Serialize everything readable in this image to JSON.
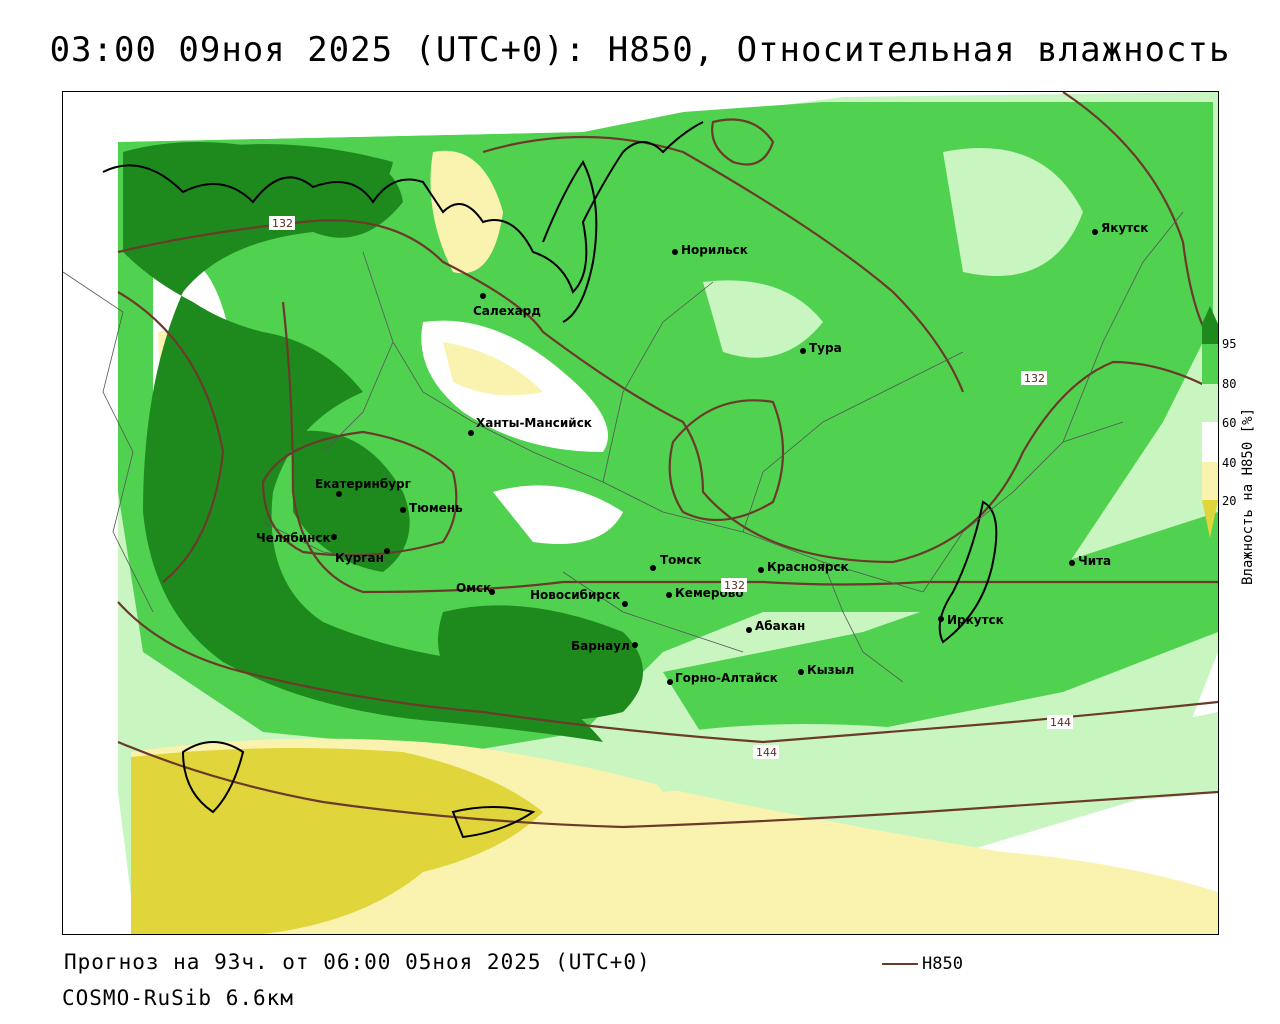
{
  "title": "03:00 09ноя 2025 (UTC+0): H850, Относительная влажность",
  "colorbar": {
    "label": "Влажность на H850 [%]",
    "ticks": [
      "95",
      "80",
      "60",
      "40",
      "20"
    ],
    "colors": [
      "#1e8a1e",
      "#50d250",
      "#c9f5c0",
      "#ffffff",
      "#faf3b0",
      "#e0d53a"
    ]
  },
  "cities": [
    {
      "name": "Якутск"
    },
    {
      "name": "Норильск"
    },
    {
      "name": "Салехард"
    },
    {
      "name": "Тура"
    },
    {
      "name": "Ханты-Мансийск"
    },
    {
      "name": "Екатеринбург"
    },
    {
      "name": "Тюмень"
    },
    {
      "name": "Челябинск"
    },
    {
      "name": "Курган"
    },
    {
      "name": "Омск"
    },
    {
      "name": "Новосибирск"
    },
    {
      "name": "Томск"
    },
    {
      "name": "Кемерово"
    },
    {
      "name": "Красноярск"
    },
    {
      "name": "Барнаул"
    },
    {
      "name": "Абакан"
    },
    {
      "name": "Горно-Алтайск"
    },
    {
      "name": "Кызыл"
    },
    {
      "name": "Иркутск"
    },
    {
      "name": "Чита"
    }
  ],
  "isolines": [
    "132",
    "132",
    "132",
    "144",
    "144"
  ],
  "footer": {
    "forecast": "Прогноз на 93ч. от 06:00 05ноя 2025 (UTC+0)",
    "model": "COSMO-RuSib 6.6км"
  },
  "legend": {
    "label": "H850"
  }
}
